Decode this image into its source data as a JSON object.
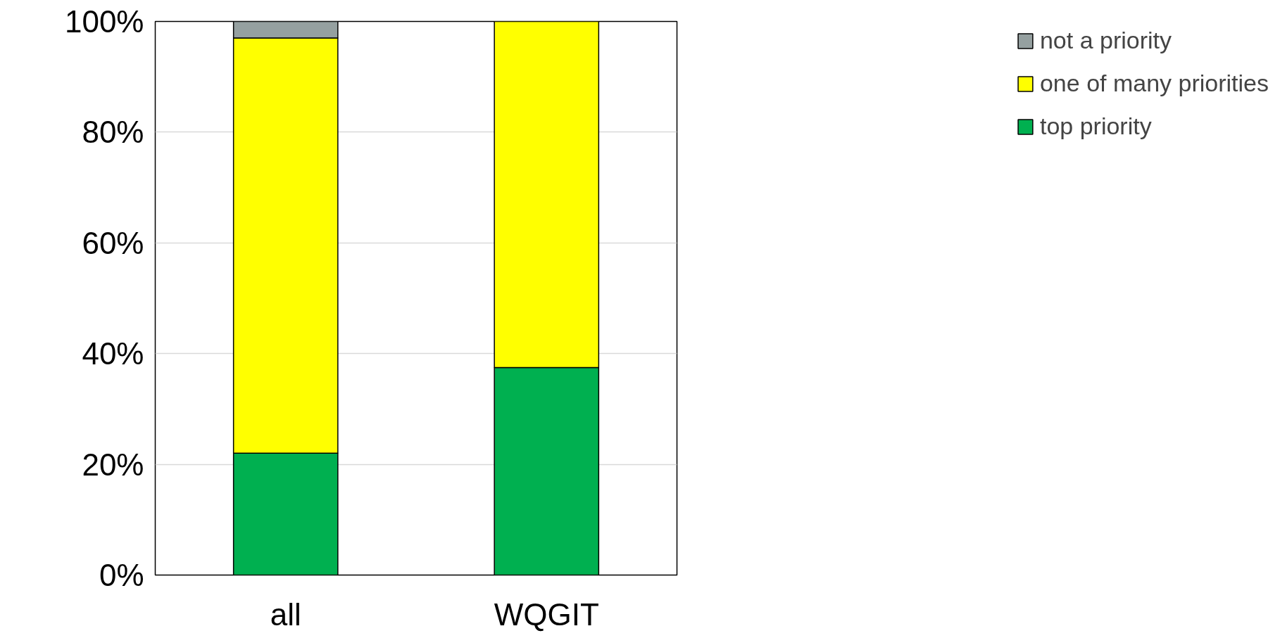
{
  "chart_data": {
    "type": "bar",
    "stacked": true,
    "categories": [
      "all",
      "WQGIT"
    ],
    "series": [
      {
        "name": "top priority",
        "color": "#00b050",
        "values": [
          22,
          37.5
        ]
      },
      {
        "name": "one of many priorities",
        "color": "#ffff00",
        "values": [
          75,
          62.5
        ]
      },
      {
        "name": "not a priority",
        "color": "#95a0a0",
        "values": [
          3,
          null
        ]
      }
    ],
    "ylim": [
      0,
      100
    ],
    "yticks": [
      {
        "value": 0,
        "label": "0%"
      },
      {
        "value": 20,
        "label": "20%"
      },
      {
        "value": 40,
        "label": "40%"
      },
      {
        "value": 60,
        "label": "60%"
      },
      {
        "value": 80,
        "label": "80%"
      },
      {
        "value": 100,
        "label": "100%"
      }
    ],
    "grid": "y",
    "legend": "right"
  }
}
